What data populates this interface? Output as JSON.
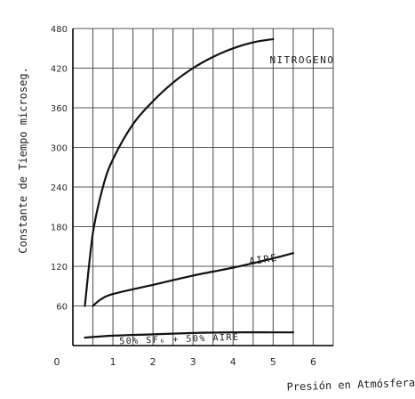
{
  "chart_data": {
    "type": "line",
    "xlabel": "Presión en Atmósfera",
    "ylabel": "Constante de Tiempo microseg.",
    "xlim": [
      0,
      6.5
    ],
    "ylim": [
      0,
      480
    ],
    "x_ticks": [
      "0",
      "1",
      "2",
      "3",
      "4",
      "5",
      "6"
    ],
    "y_ticks": [
      "60",
      "120",
      "180",
      "240",
      "300",
      "360",
      "420",
      "480"
    ],
    "grid": true,
    "series": [
      {
        "name": "NITROGENO",
        "x": [
          0.3,
          0.5,
          0.75,
          1.0,
          1.5,
          2.0,
          2.5,
          3.0,
          3.5,
          4.0,
          4.5,
          5.0
        ],
        "y": [
          60,
          170,
          240,
          282,
          335,
          370,
          398,
          420,
          437,
          450,
          459,
          464
        ]
      },
      {
        "name": "AIRE",
        "x": [
          0.5,
          0.7,
          1.0,
          2.0,
          3.0,
          4.0,
          5.0,
          5.5
        ],
        "y": [
          60,
          70,
          78,
          92,
          106,
          118,
          132,
          140
        ]
      },
      {
        "name": "50% SF₆ + 50% AIRE",
        "x": [
          0.3,
          1.0,
          2.0,
          3.0,
          4.0,
          5.0,
          5.5
        ],
        "y": [
          12,
          15,
          17,
          19,
          20,
          20,
          20
        ]
      }
    ]
  }
}
